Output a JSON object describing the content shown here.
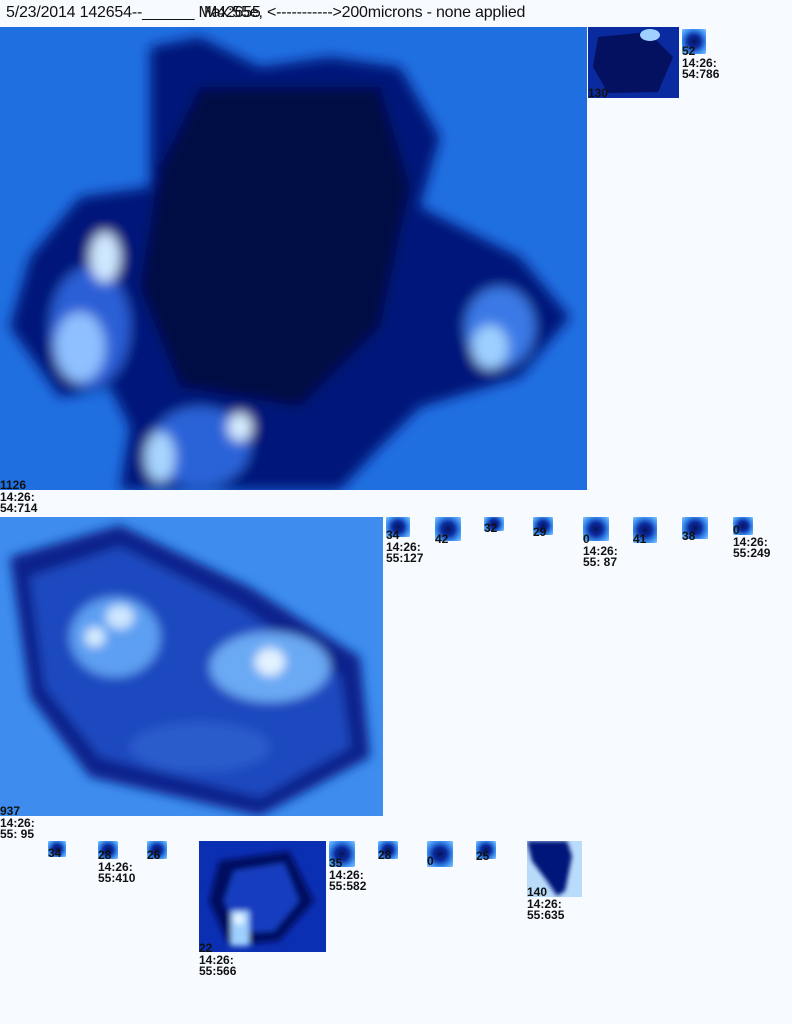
{
  "header": {
    "line": "5/23/2014 142654--______ Max:55e, <----------->200microns - none applied",
    "overlay": "M42655"
  },
  "images": [
    {
      "id": "crystal-1",
      "label": "1126\n14:26:\n54:714"
    },
    {
      "id": "crystal-2",
      "label": "937\n14:26:\n55: 95"
    },
    {
      "id": "crystal-3",
      "label": "22\n14:26:\n55:566"
    },
    {
      "id": "thumb-a",
      "label": "130"
    },
    {
      "id": "thumb-b",
      "label": "52\n14:26:\n54:786"
    },
    {
      "id": "r1-1",
      "label": "34\n14:26:\n55:127"
    },
    {
      "id": "r1-2",
      "label": "42"
    },
    {
      "id": "r1-3",
      "label": "32"
    },
    {
      "id": "r1-4",
      "label": "29"
    },
    {
      "id": "r1-5",
      "label": "0\n14:26:\n55: 87"
    },
    {
      "id": "r1-6",
      "label": "41"
    },
    {
      "id": "r1-7",
      "label": "38"
    },
    {
      "id": "r1-8",
      "label": "0\n14:26:\n55:249"
    },
    {
      "id": "r2-1",
      "label": "34"
    },
    {
      "id": "r2-2",
      "label": "28\n14:26:\n55:410"
    },
    {
      "id": "r2-3",
      "label": "26"
    },
    {
      "id": "r2-4",
      "label": "35\n14:26:\n55:582"
    },
    {
      "id": "r2-5",
      "label": "28"
    },
    {
      "id": "r2-6",
      "label": "0"
    },
    {
      "id": "r2-7",
      "label": "25"
    },
    {
      "id": "r2-8",
      "label": "140\n14:26:\n55:635"
    }
  ]
}
